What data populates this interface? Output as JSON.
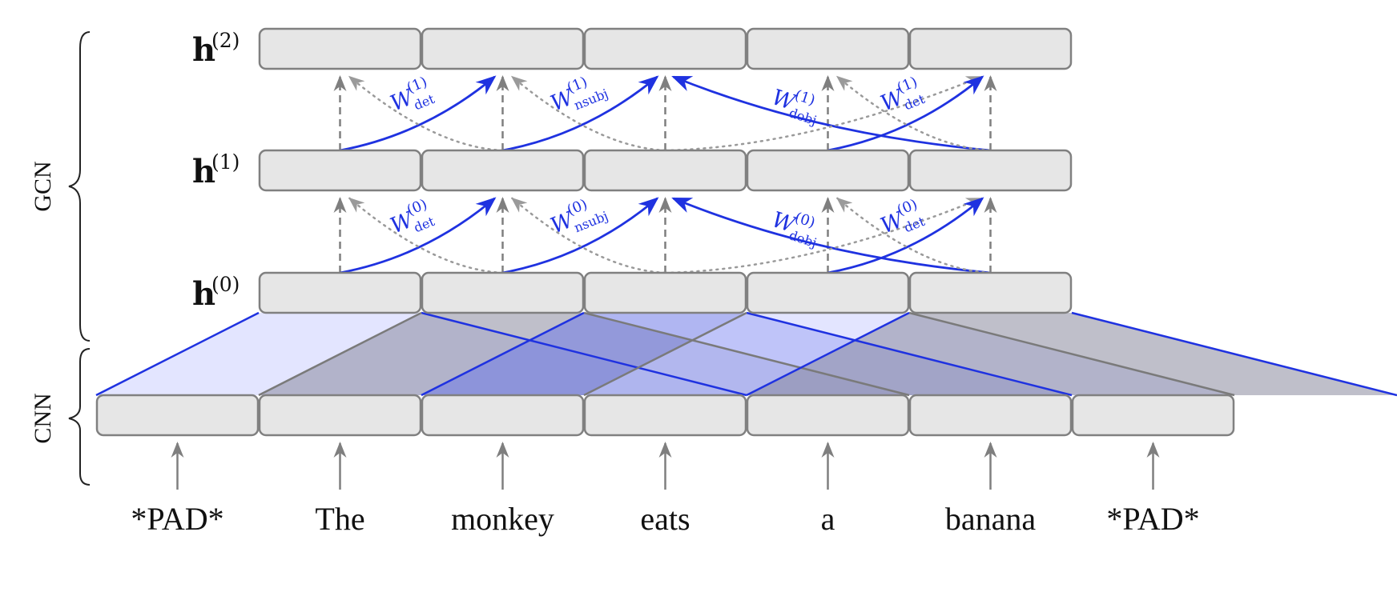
{
  "colors": {
    "box_fill": "#e6e6e6",
    "box_stroke": "#808080",
    "edge_blue": "#1f32e0",
    "cnn_light": "#ccd0ff",
    "cnn_gray": "#8a8a9e",
    "cnn_blue": "#6f7ae8",
    "dashed_gray": "#7f7f7f",
    "dotted_gray": "#9a9a9a",
    "text": "#111111"
  },
  "side_labels": {
    "gcn": "GCN",
    "cnn": "CNN"
  },
  "words": [
    "*PAD*",
    "The",
    "monkey",
    "eats",
    "a",
    "banana",
    "*PAD*"
  ],
  "layers": [
    {
      "base": "h",
      "sup": "(0)"
    },
    {
      "base": "h",
      "sup": "(1)"
    },
    {
      "base": "h",
      "sup": "(2)"
    }
  ],
  "gcn_edges": [
    {
      "relation": "det",
      "from_word": 1,
      "to_word": 2
    },
    {
      "relation": "nsubj",
      "from_word": 2,
      "to_word": 3
    },
    {
      "relation": "dobj",
      "from_word": 5,
      "to_word": 3
    },
    {
      "relation": "det",
      "from_word": 4,
      "to_word": 5
    }
  ],
  "weight_labels": [
    {
      "base": "W",
      "sub": "det",
      "sup0": "(0)",
      "sup1": "(1)"
    },
    {
      "base": "W",
      "sub": "nsubj",
      "sup0": "(0)",
      "sup1": "(1)"
    },
    {
      "base": "W",
      "sub": "dobj",
      "sup0": "(0)",
      "sup1": "(1)"
    },
    {
      "base": "W",
      "sub": "det",
      "sup0": "(0)",
      "sup1": "(1)"
    }
  ]
}
